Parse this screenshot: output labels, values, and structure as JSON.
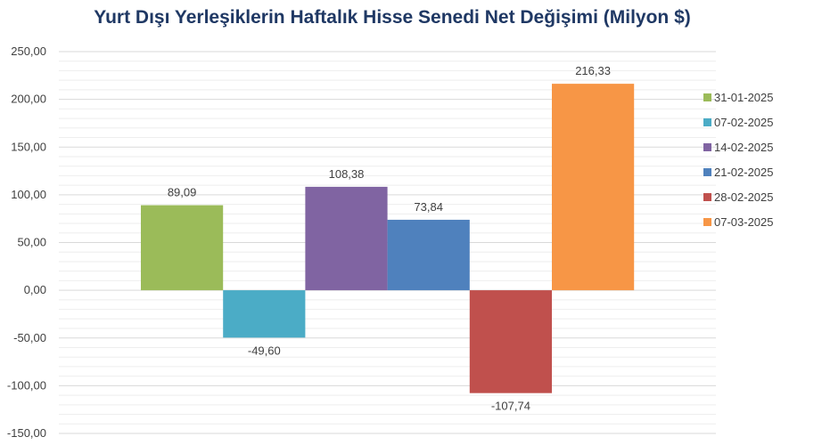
{
  "chart_data": {
    "type": "bar",
    "title": "Yurt Dışı Yerleşiklerin Haftalık Hisse Senedi Net Değişimi (Milyon $)",
    "xlabel": "",
    "ylabel": "",
    "ylim": [
      -150,
      250
    ],
    "y_ticks": [
      "250,00",
      "200,00",
      "150,00",
      "100,00",
      "50,00",
      "0,00",
      "-50,00",
      "-100,00",
      "-150,00"
    ],
    "y_tick_values": [
      250,
      200,
      150,
      100,
      50,
      0,
      -50,
      -100,
      -150
    ],
    "grid": true,
    "legend_position": "right",
    "series": [
      {
        "name": "31-01-2025",
        "value": 89.09,
        "label": "89,09",
        "color": "#9bbb59"
      },
      {
        "name": "07-02-2025",
        "value": -49.6,
        "label": "-49,60",
        "color": "#4bacc6"
      },
      {
        "name": "14-02-2025",
        "value": 108.38,
        "label": "108,38",
        "color": "#8064a2"
      },
      {
        "name": "21-02-2025",
        "value": 73.84,
        "label": "73,84",
        "color": "#4f81bd"
      },
      {
        "name": "28-02-2025",
        "value": -107.74,
        "label": "-107,74",
        "color": "#c0504d"
      },
      {
        "name": "07-03-2025",
        "value": 216.33,
        "label": "216,33",
        "color": "#f79646"
      }
    ]
  }
}
